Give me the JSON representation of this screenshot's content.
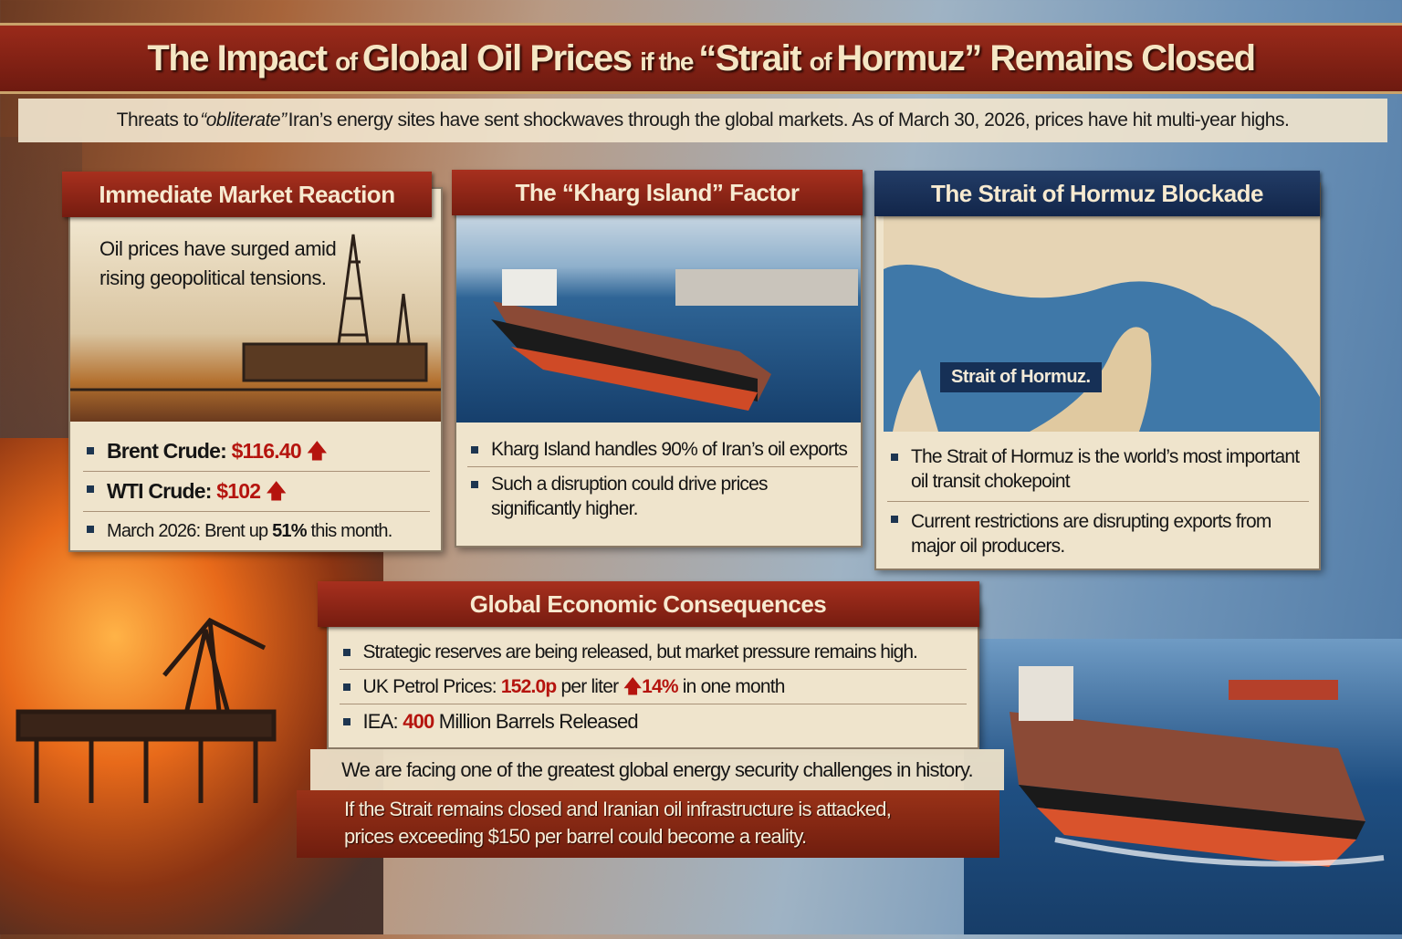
{
  "title": {
    "part1": "The Impact ",
    "part2": "of ",
    "part3": "Global Oil Prices ",
    "part4": "if the ",
    "part5": "“Strait ",
    "part6": "of ",
    "part7": "Hormuz” Remains Closed"
  },
  "subtitle": {
    "before": "Threats to ",
    "emph": "“obliterate”",
    "after": " Iran’s energy sites have sent shockwaves through the global markets. As of March 30, 2026, prices have hit multi-year highs."
  },
  "panels": {
    "market": {
      "heading": "Immediate Market Reaction",
      "intro": "Oil prices have surged amid rising geopolitical tensions.",
      "brent_label": "Brent Crude:",
      "brent_value": "$116.40",
      "wti_label": "WTI Crude:",
      "wti_value": "$102",
      "march_before": "March 2026: Brent up ",
      "march_pct": "51%",
      "march_after": " this month."
    },
    "kharg": {
      "heading": "The “Kharg Island” Factor",
      "bullets": [
        "Kharg Island handles 90% of Iran’s oil exports",
        "Such a disruption could drive prices significantly higher."
      ]
    },
    "hormuz": {
      "heading": "The Strait of Hormuz Blockade",
      "map_label": "Strait of Hormuz.",
      "bullets": [
        "The Strait of Hormuz is the world’s most important oil transit chokepoint",
        "Current restrictions are disrupting exports from major oil producers."
      ]
    }
  },
  "consequences": {
    "heading": "Global Economic Consequences",
    "reserves": "Strategic reserves are being released, but market pressure remains high.",
    "uk_label": "UK Petrol Prices: ",
    "uk_value": "152.0p",
    "uk_mid": " per liter ",
    "uk_pct": "14%",
    "uk_after": " in one month",
    "iea_label": "IEA: ",
    "iea_value": "400",
    "iea_after": " Million Barrels Released",
    "quote": "We are facing one of the greatest global energy security challenges in history.",
    "warning_line1": "If the Strait remains closed and Iranian oil infrastructure is attacked,",
    "warning_line2": "prices exceeding $150 per barrel could become a reality."
  },
  "icons": {
    "up": "up-arrow-icon",
    "bullet": "square-bullet-icon"
  },
  "colors": {
    "banner_red": "#8e2617",
    "banner_blue": "#1a3158",
    "accent_red": "#b5140e",
    "paper": "#efe4cc"
  }
}
